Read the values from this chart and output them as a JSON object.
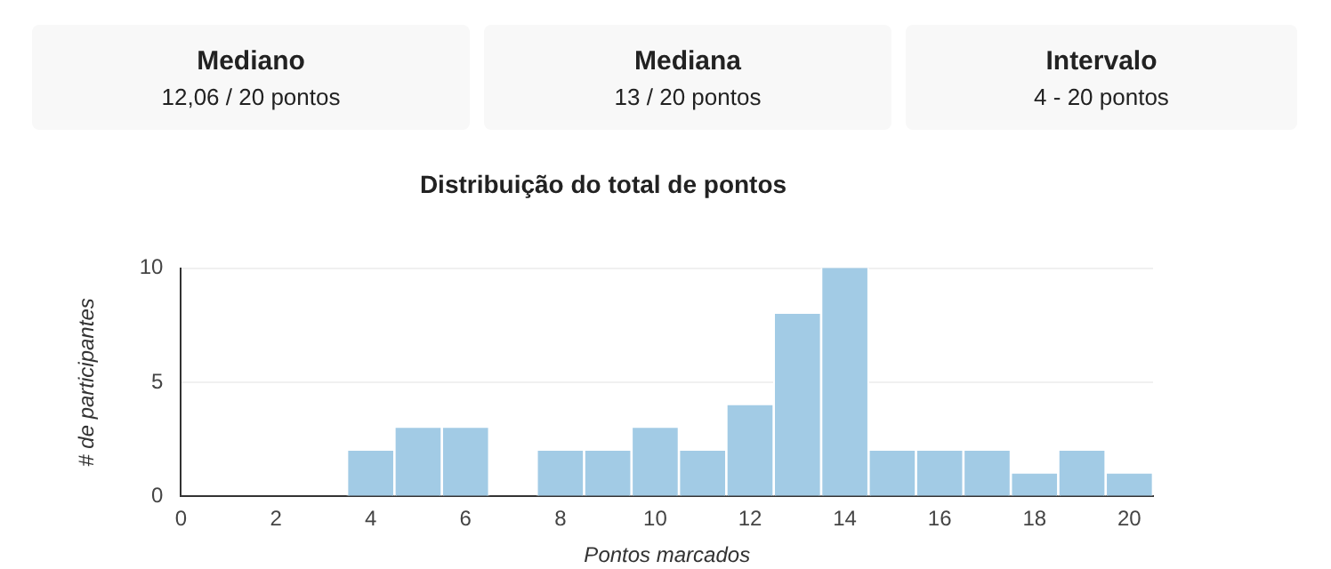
{
  "chart_data": [
    {
      "type": "other",
      "title": "Mediano",
      "subtitle": "12,06 / 20 pontos"
    },
    {
      "type": "other",
      "title": "Mediana",
      "subtitle": "13 / 20 pontos"
    },
    {
      "type": "other",
      "title": "Intervalo",
      "subtitle": "4 - 20 pontos"
    },
    {
      "type": "histogram",
      "title": "Distribuição do total de pontos",
      "xlabel": "Pontos marcados",
      "ylabel": "# de participantes",
      "bins": [
        3.5,
        4.5,
        5.5,
        6.5,
        7.5,
        8.5,
        9.5,
        10.5,
        11.5,
        12.5,
        13.5,
        14.5,
        15.5,
        16.5,
        17.5,
        18.5,
        19.5,
        20.5
      ],
      "values": [
        2,
        3,
        3,
        0,
        2,
        2,
        3,
        2,
        4,
        8,
        10,
        2,
        2,
        2,
        1,
        2,
        1
      ],
      "color": "#a2cbe5",
      "xlim": [
        0,
        20.5
      ],
      "xticks": [
        0,
        2,
        4,
        6,
        8,
        10,
        12,
        14,
        16,
        18,
        20
      ],
      "ylim": [
        0,
        10
      ],
      "yticks": [
        0,
        5,
        10
      ],
      "grid": "y",
      "legend": false
    }
  ]
}
